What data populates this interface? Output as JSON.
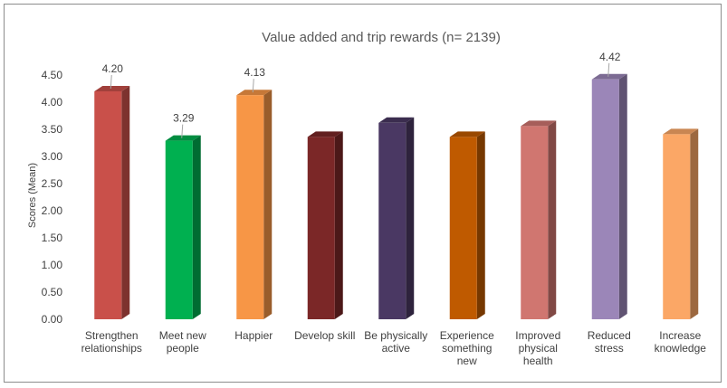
{
  "chart_data": {
    "type": "bar",
    "title": "Value added and trip rewards (n= 2139)",
    "xlabel": "",
    "ylabel": "Scores (Mean)",
    "ylim": [
      0,
      4.5
    ],
    "yticks": [
      "0.00",
      "0.50",
      "1.00",
      "1.50",
      "2.00",
      "2.50",
      "3.00",
      "3.50",
      "4.00",
      "4.50"
    ],
    "grid": false,
    "legend": "none",
    "style": "3d-column",
    "categories": [
      [
        "Strengthen",
        "relationships"
      ],
      [
        "Meet new",
        "people"
      ],
      [
        "Happier"
      ],
      [
        "Develop skill"
      ],
      [
        "Be physically",
        "active"
      ],
      [
        "Experience",
        "something",
        "new"
      ],
      [
        "Improved",
        "physical",
        "health"
      ],
      [
        "Reduced",
        "stress"
      ],
      [
        "Increase",
        "knowledge"
      ]
    ],
    "values": [
      4.2,
      3.29,
      4.13,
      3.36,
      3.62,
      3.36,
      3.56,
      4.42,
      3.41
    ],
    "data_labels": [
      "4.20",
      "3.29",
      "4.13",
      "",
      "",
      "",
      "",
      "4.42",
      ""
    ],
    "colors": [
      "#c9504a",
      "#00b050",
      "#f79646",
      "#7b2727",
      "#4a3863",
      "#bf5a00",
      "#d07670",
      "#9b86b8",
      "#fba766"
    ]
  }
}
